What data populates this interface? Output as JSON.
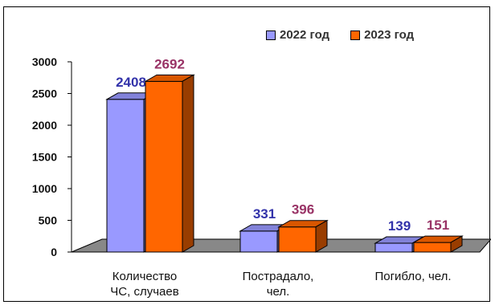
{
  "chart_data": {
    "type": "bar",
    "categories": [
      [
        "Количество",
        "ЧС, случаев"
      ],
      [
        "Пострадало,",
        "чел."
      ],
      [
        "Погибло, чел."
      ]
    ],
    "series": [
      {
        "name": "2022 год",
        "values": [
          2408,
          331,
          139
        ],
        "color": "#9999ff",
        "label_color": "#3333aa"
      },
      {
        "name": "2023 год",
        "values": [
          2692,
          396,
          151
        ],
        "color": "#ff6600",
        "label_color": "#993366"
      }
    ],
    "ylim": [
      0,
      3000
    ],
    "yticks": [
      "0",
      "500",
      "1000",
      "1500",
      "2000",
      "2500",
      "3000"
    ],
    "legend_position": "top-right",
    "grid": false,
    "style": "3d"
  }
}
